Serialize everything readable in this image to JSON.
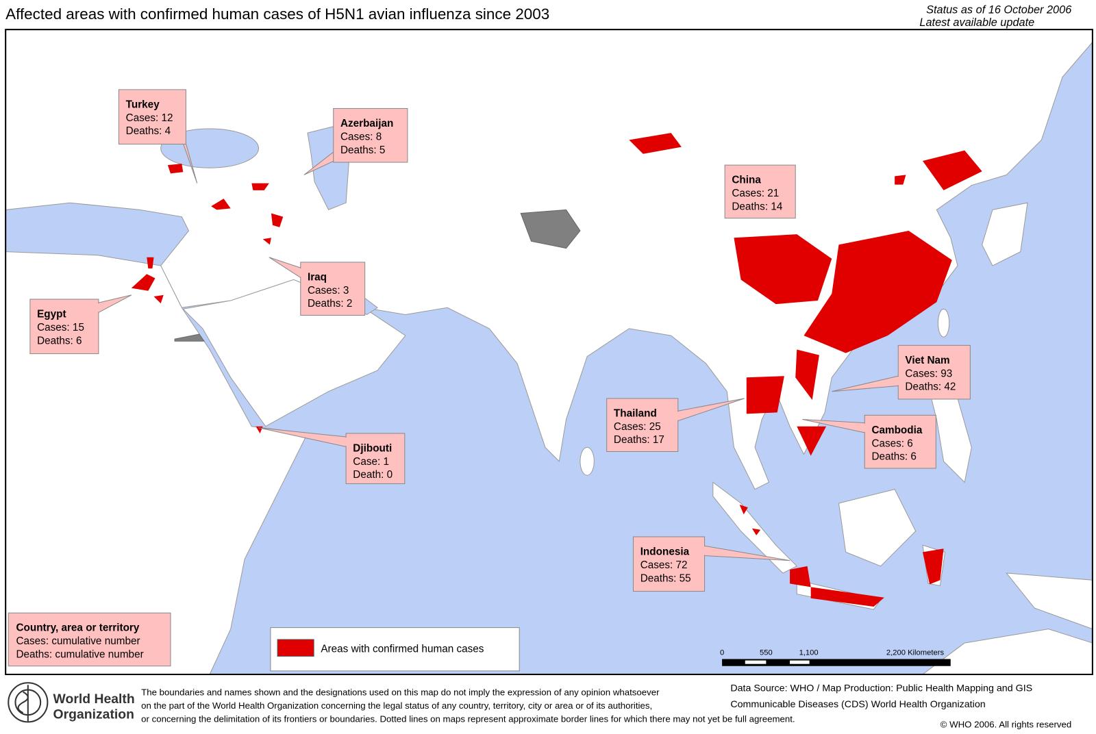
{
  "header": {
    "title": "Affected areas with confirmed human cases of H5N1 avian influenza since 2003",
    "status": "Status as of 16 October 2006",
    "update": "Latest available update"
  },
  "callouts": [
    {
      "name": "Turkey",
      "cases": "Cases: 12",
      "deaths": "Deaths: 4"
    },
    {
      "name": "Azerbaijan",
      "cases": "Cases: 8",
      "deaths": "Deaths: 5"
    },
    {
      "name": "China",
      "cases": "Cases: 21",
      "deaths": "Deaths: 14"
    },
    {
      "name": "Iraq",
      "cases": "Cases: 3",
      "deaths": "Deaths: 2"
    },
    {
      "name": "Egypt",
      "cases": "Cases: 15",
      "deaths": "Deaths: 6"
    },
    {
      "name": "Djibouti",
      "cases": "Case: 1",
      "deaths": "Death: 0"
    },
    {
      "name": "Thailand",
      "cases": "Cases: 25",
      "deaths": "Deaths: 17"
    },
    {
      "name": "Viet Nam",
      "cases": "Cases: 93",
      "deaths": "Deaths: 42"
    },
    {
      "name": "Cambodia",
      "cases": "Cases: 6",
      "deaths": "Deaths: 6"
    },
    {
      "name": "Indonesia",
      "cases": "Cases: 72",
      "deaths": "Deaths: 55"
    }
  ],
  "key": {
    "title": "Country, area or territory",
    "cases": "Cases: cumulative number",
    "deaths": "Deaths: cumulative number"
  },
  "legend": {
    "label": "Areas with confirmed human cases",
    "color": "#e00000"
  },
  "scale": {
    "labels": [
      "0",
      "550",
      "1,100",
      "2,200 Kilometers"
    ]
  },
  "footer": {
    "org": [
      "World Health",
      "Organization"
    ],
    "disclaimer": [
      "The boundaries and names shown and the designations used on this map do not imply the expression of any opinion whatsoever",
      "on the part of the World Health Organization concerning the legal status of any country, territory, city or area or of its authorities,",
      "or concerning the delimitation of its frontiers or boundaries.  Dotted lines on maps represent approximate border lines for which there may not yet be full agreement."
    ],
    "source": [
      "Data Source: WHO / Map Production: Public Health Mapping and GIS",
      "Communicable Diseases (CDS) World Health Organization"
    ],
    "copyright": "© WHO 2006. All rights reserved"
  }
}
